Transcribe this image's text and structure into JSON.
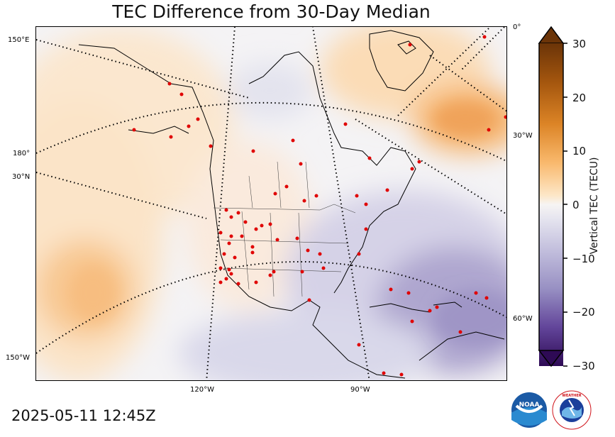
{
  "title": "TEC Difference from 30-Day Median",
  "timestamp": "2025-05-11 12:45Z",
  "colorbar": {
    "label": "Vertical TEC (TECU)",
    "ticks": [
      "30",
      "20",
      "10",
      "0",
      "−10",
      "−20",
      "−30"
    ],
    "range": [
      -30,
      30
    ],
    "positive_color": "#c8721e",
    "negative_color": "#3b1465"
  },
  "gridlines": {
    "left": [
      "150°E",
      "180°",
      "30°N",
      "150°W"
    ],
    "right": [
      "0°",
      "30°W",
      "60°W"
    ],
    "bottom": [
      "120°W",
      "90°W"
    ]
  },
  "logos": {
    "noaa": "NOAA",
    "nws": "NATIONAL WEATHER SERVICE"
  }
}
